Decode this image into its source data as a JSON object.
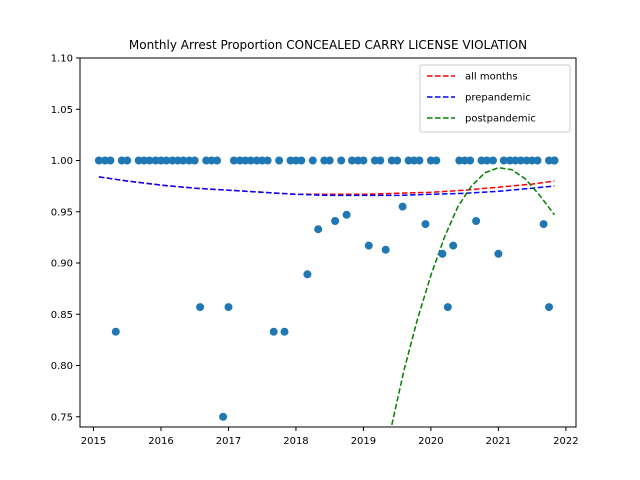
{
  "chart_data": {
    "type": "scatter",
    "title": "Monthly Arrest Proportion CONCEALED CARRY LICENSE VIOLATION",
    "xlabel": "",
    "ylabel": "",
    "xlim": [
      2014.8,
      2022.15
    ],
    "ylim": [
      0.74,
      1.1
    ],
    "xticks": [
      2015,
      2016,
      2017,
      2018,
      2019,
      2020,
      2021,
      2022
    ],
    "yticks": [
      0.75,
      0.8,
      0.85,
      0.9,
      0.95,
      1.0,
      1.05,
      1.1
    ],
    "ytick_labels": [
      "0.75",
      "0.80",
      "0.85",
      "0.90",
      "0.95",
      "1.00",
      "1.05",
      "1.10"
    ],
    "grid": false,
    "legend_position": "top-right",
    "points_color": "#1f77b4",
    "points": {
      "x": [
        2015.08,
        2015.17,
        2015.25,
        2015.33,
        2015.42,
        2015.5,
        2015.67,
        2015.75,
        2015.83,
        2015.92,
        2016.0,
        2016.08,
        2016.17,
        2016.25,
        2016.33,
        2016.42,
        2016.5,
        2016.58,
        2016.67,
        2016.75,
        2016.83,
        2016.92,
        2017.0,
        2017.08,
        2017.17,
        2017.25,
        2017.33,
        2017.42,
        2017.5,
        2017.58,
        2017.67,
        2017.75,
        2017.83,
        2017.92,
        2018.0,
        2018.08,
        2018.17,
        2018.25,
        2018.33,
        2018.42,
        2018.5,
        2018.58,
        2018.67,
        2018.75,
        2018.83,
        2018.92,
        2019.0,
        2019.08,
        2019.17,
        2019.25,
        2019.33,
        2019.42,
        2019.5,
        2019.58,
        2019.67,
        2019.75,
        2019.83,
        2019.92,
        2020.0,
        2020.08,
        2020.17,
        2020.25,
        2020.33,
        2020.42,
        2020.5,
        2020.58,
        2020.67,
        2020.75,
        2020.83,
        2020.92,
        2021.0,
        2021.08,
        2021.17,
        2021.25,
        2021.33,
        2021.42,
        2021.5,
        2021.58,
        2021.67,
        2021.75,
        2021.83
      ],
      "y": [
        1.0,
        1.0,
        1.0,
        0.833,
        1.0,
        1.0,
        1.0,
        1.0,
        1.0,
        1.0,
        1.0,
        1.0,
        1.0,
        1.0,
        1.0,
        1.0,
        1.0,
        0.857,
        1.0,
        1.0,
        1.0,
        0.75,
        0.857,
        1.0,
        1.0,
        1.0,
        1.0,
        1.0,
        1.0,
        1.0,
        0.833,
        1.0,
        0.833,
        1.0,
        1.0,
        1.0,
        0.889,
        1.0,
        0.933,
        1.0,
        1.0,
        0.941,
        1.0,
        0.947,
        1.0,
        1.0,
        1.0,
        0.917,
        1.0,
        1.0,
        0.913,
        1.0,
        1.0,
        0.955,
        1.0,
        1.0,
        1.0,
        0.938,
        1.0,
        1.0,
        0.909,
        0.857,
        0.917,
        1.0,
        1.0,
        1.0,
        0.941,
        1.0,
        1.0,
        1.0,
        0.909,
        1.0,
        1.0,
        1.0,
        1.0,
        1.0,
        1.0,
        1.0,
        0.938,
        0.857,
        1.0
      ]
    },
    "extra_points": {
      "x": [
        2021.75,
        2021.83
      ],
      "y": [
        1.0,
        1.0
      ]
    },
    "series": [
      {
        "name": "all months",
        "color": "#ff0000",
        "dash": "dashed",
        "x": [
          2015.08,
          2015.5,
          2016.0,
          2016.5,
          2017.0,
          2017.5,
          2018.0,
          2018.5,
          2019.0,
          2019.5,
          2020.0,
          2020.5,
          2021.0,
          2021.5,
          2021.83
        ],
        "y": [
          0.984,
          0.98,
          0.976,
          0.973,
          0.971,
          0.969,
          0.967,
          0.967,
          0.967,
          0.968,
          0.969,
          0.971,
          0.974,
          0.977,
          0.98
        ]
      },
      {
        "name": "prepandemic",
        "color": "#0000ff",
        "dash": "dashed",
        "x": [
          2015.08,
          2015.5,
          2016.0,
          2016.5,
          2017.0,
          2017.5,
          2018.0,
          2018.5,
          2019.0,
          2019.5,
          2020.0,
          2020.5,
          2021.0,
          2021.5,
          2021.83
        ],
        "y": [
          0.984,
          0.98,
          0.976,
          0.973,
          0.971,
          0.969,
          0.967,
          0.966,
          0.966,
          0.966,
          0.967,
          0.968,
          0.97,
          0.973,
          0.975
        ]
      },
      {
        "name": "postpandemic",
        "color": "#008000",
        "dash": "dashed",
        "x": [
          2019.42,
          2019.6,
          2019.8,
          2020.0,
          2020.2,
          2020.4,
          2020.6,
          2020.8,
          2021.0,
          2021.2,
          2021.4,
          2021.6,
          2021.83
        ],
        "y": [
          0.742,
          0.795,
          0.845,
          0.888,
          0.925,
          0.955,
          0.975,
          0.988,
          0.993,
          0.991,
          0.982,
          0.967,
          0.947
        ]
      }
    ]
  }
}
